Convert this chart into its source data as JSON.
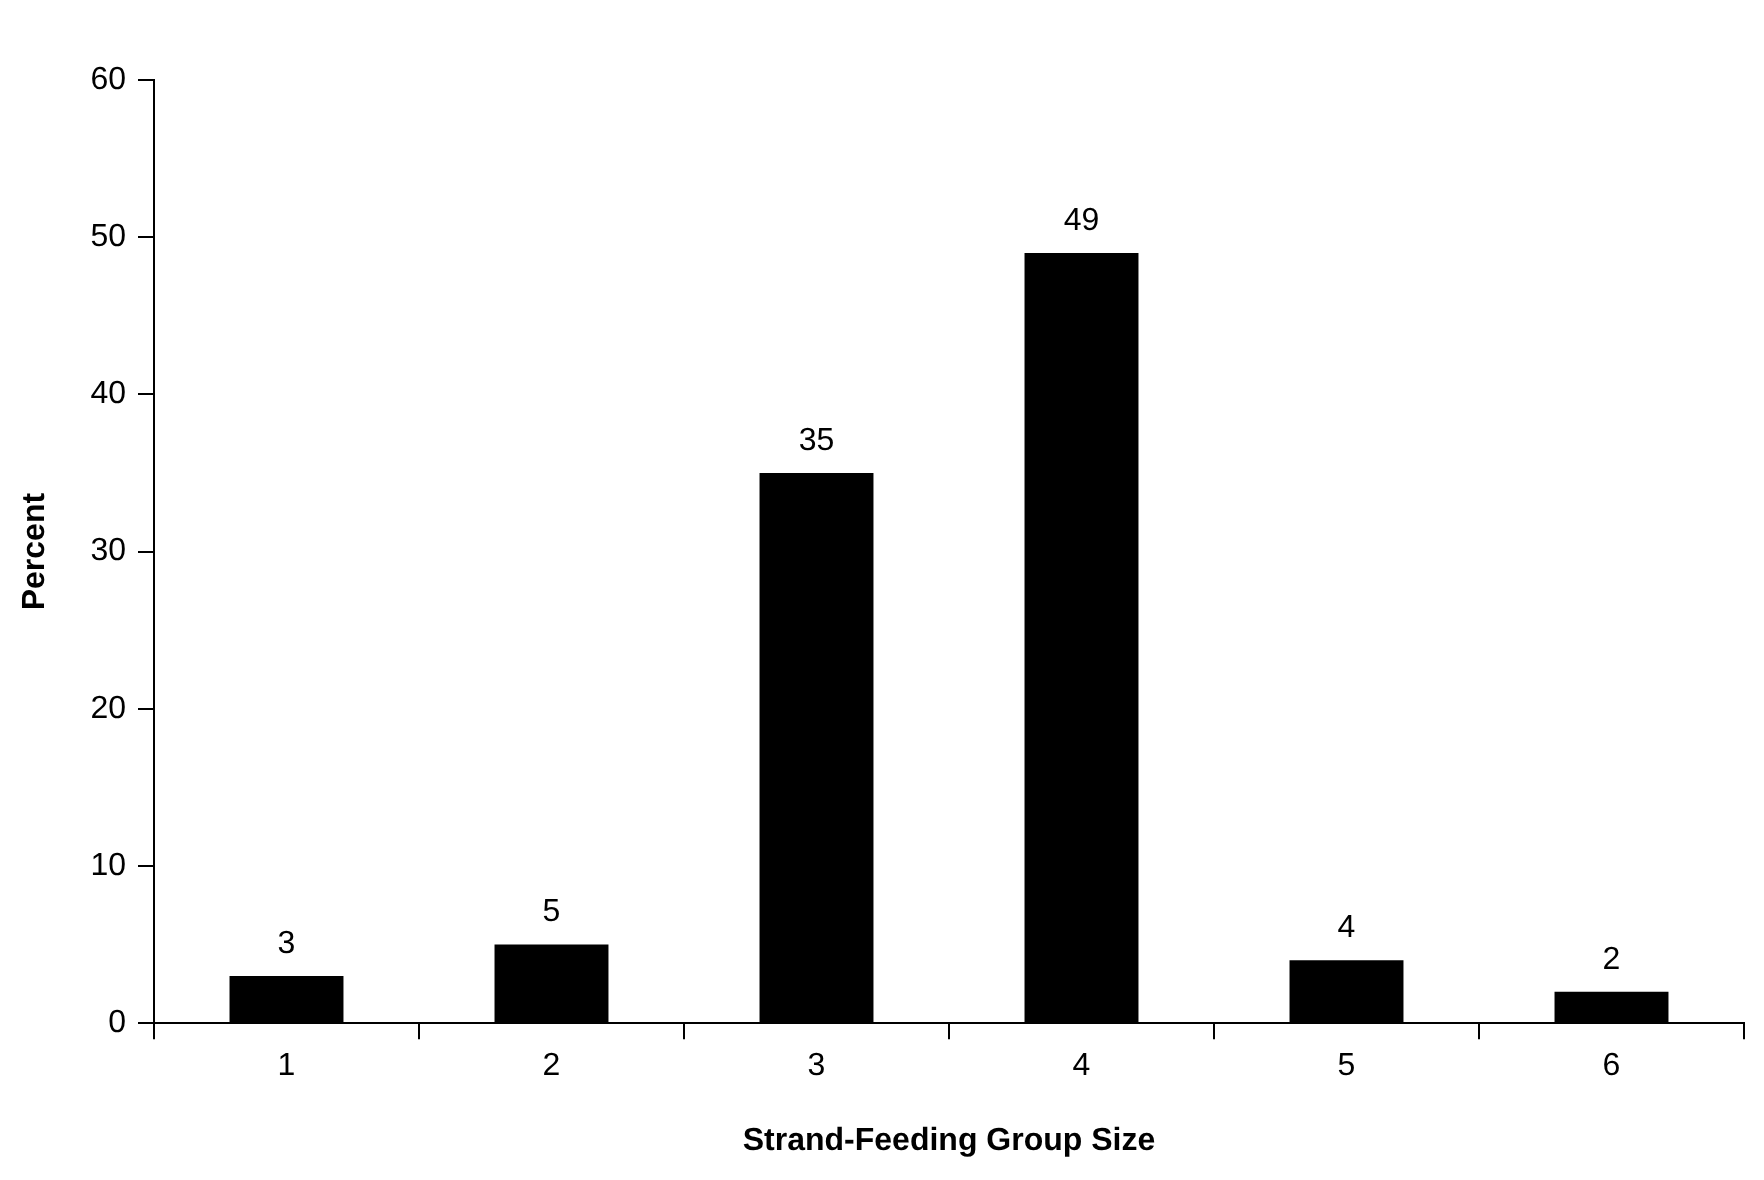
{
  "chart_data": {
    "type": "bar",
    "xlabel": "Strand-Feeding Group Size",
    "ylabel": "Percent",
    "categories": [
      "1",
      "2",
      "3",
      "4",
      "5",
      "6"
    ],
    "values": [
      3,
      5,
      35,
      49,
      4,
      2
    ],
    "color": "#000000",
    "ylim": [
      0,
      60
    ],
    "yticks": [
      0,
      10,
      20,
      30,
      40,
      50,
      60
    ],
    "data_labels": true,
    "legend": false
  }
}
